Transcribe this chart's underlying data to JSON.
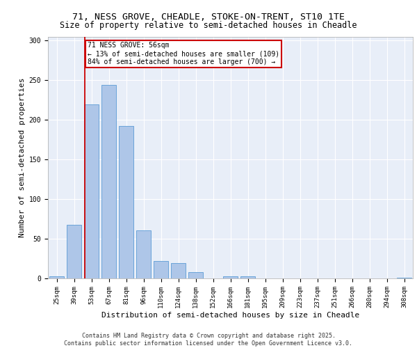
{
  "title_line1": "71, NESS GROVE, CHEADLE, STOKE-ON-TRENT, ST10 1TE",
  "title_line2": "Size of property relative to semi-detached houses in Cheadle",
  "xlabel": "Distribution of semi-detached houses by size in Cheadle",
  "ylabel": "Number of semi-detached properties",
  "categories": [
    "25sqm",
    "39sqm",
    "53sqm",
    "67sqm",
    "81sqm",
    "96sqm",
    "110sqm",
    "124sqm",
    "138sqm",
    "152sqm",
    "166sqm",
    "181sqm",
    "195sqm",
    "209sqm",
    "223sqm",
    "237sqm",
    "251sqm",
    "266sqm",
    "280sqm",
    "294sqm",
    "308sqm"
  ],
  "values": [
    3,
    68,
    219,
    244,
    192,
    61,
    22,
    19,
    8,
    0,
    3,
    3,
    0,
    0,
    0,
    0,
    0,
    0,
    0,
    0,
    1
  ],
  "bar_color": "#aec6e8",
  "bar_edge_color": "#5b9bd5",
  "vline_color": "#cc0000",
  "vline_pos": 1.62,
  "annotation_text": "71 NESS GROVE: 56sqm\n← 13% of semi-detached houses are smaller (109)\n84% of semi-detached houses are larger (700) →",
  "annotation_box_color": "#ffffff",
  "annotation_box_edge": "#cc0000",
  "ylim": [
    0,
    305
  ],
  "yticks": [
    0,
    50,
    100,
    150,
    200,
    250,
    300
  ],
  "footer_text": "Contains HM Land Registry data © Crown copyright and database right 2025.\nContains public sector information licensed under the Open Government Licence v3.0.",
  "background_color": "#e8eef8",
  "grid_color": "#ffffff",
  "title_fontsize": 9.5,
  "subtitle_fontsize": 8.5,
  "axis_label_fontsize": 8,
  "tick_fontsize": 6.5,
  "footer_fontsize": 6,
  "annot_fontsize": 7
}
